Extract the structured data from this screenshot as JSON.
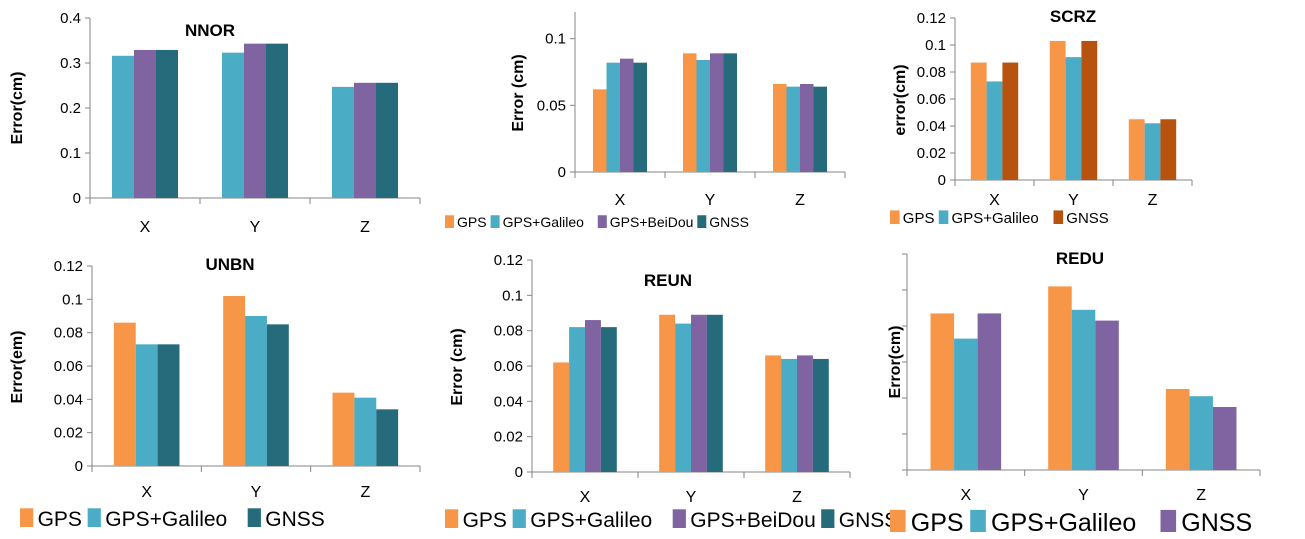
{
  "colors": {
    "GPS": "#F79646",
    "GPS+Galileo": "#4BACC6",
    "GPS+BeiDou": "#8064A2",
    "GNSS_teal": "#256B7B",
    "GNSS_orange": "#B8520F",
    "GNSS_purple": "#8064A2",
    "axis": "#868686",
    "grid": "#bfbfbf"
  },
  "chart_data": [
    {
      "type": "bar",
      "title": "NNOR",
      "ylabel": "Error(cm)",
      "categories": [
        "X",
        "Y",
        "Z"
      ],
      "ylim": [
        0,
        0.4
      ],
      "yticks": [
        "0",
        "0.1",
        "0.2",
        "0.3",
        "0.4"
      ],
      "series": [
        {
          "name": "GPS+Galileo",
          "color": "#4BACC6",
          "values": [
            0.316,
            0.323,
            0.247
          ]
        },
        {
          "name": "GPS+BeiDou",
          "color": "#8064A2",
          "values": [
            0.329,
            0.343,
            0.256
          ]
        },
        {
          "name": "GNSS",
          "color": "#256B7B",
          "values": [
            0.329,
            0.343,
            0.256
          ]
        }
      ],
      "legend": []
    },
    {
      "type": "bar",
      "title": "",
      "ylabel": "Error (cm)",
      "categories": [
        "X",
        "Y",
        "Z"
      ],
      "ylim": [
        0,
        0.12
      ],
      "yticks": [
        "0",
        "0.05",
        "0.1"
      ],
      "yticks_values": [
        0,
        0.05,
        0.1
      ],
      "series": [
        {
          "name": "GPS",
          "color": "#F79646",
          "values": [
            0.062,
            0.089,
            0.066
          ]
        },
        {
          "name": "GPS+Galileo",
          "color": "#4BACC6",
          "values": [
            0.082,
            0.084,
            0.064
          ]
        },
        {
          "name": "GPS+BeiDou",
          "color": "#8064A2",
          "values": [
            0.085,
            0.089,
            0.066
          ]
        },
        {
          "name": "GNSS",
          "color": "#256B7B",
          "values": [
            0.082,
            0.089,
            0.064
          ]
        }
      ],
      "legend": [
        "GPS",
        "GPS+Galileo",
        "GPS+BeiDou",
        "GNSS"
      ]
    },
    {
      "type": "bar",
      "title": "SCRZ",
      "ylabel": "error(cm)",
      "categories": [
        "X",
        "Y",
        "Z"
      ],
      "ylim": [
        0,
        0.12
      ],
      "yticks": [
        "0",
        "0.02",
        "0.04",
        "0.06",
        "0.08",
        "0.1",
        "0.12"
      ],
      "series": [
        {
          "name": "GPS",
          "color": "#F79646",
          "values": [
            0.087,
            0.103,
            0.045
          ]
        },
        {
          "name": "GPS+Galileo",
          "color": "#4BACC6",
          "values": [
            0.073,
            0.091,
            0.042
          ]
        },
        {
          "name": "GNSS",
          "color": "#B8520F",
          "values": [
            0.087,
            0.103,
            0.045
          ]
        }
      ],
      "legend": [
        "GPS",
        "GPS+Galileo",
        "GNSS"
      ]
    },
    {
      "type": "bar",
      "title": "UNBN",
      "ylabel": "Error(em)",
      "categories": [
        "X",
        "Y",
        "Z"
      ],
      "ylim": [
        0,
        0.12
      ],
      "yticks": [
        "0",
        "0.02",
        "0.04",
        "0.06",
        "0.08",
        "0.1",
        "0.12"
      ],
      "series": [
        {
          "name": "GPS",
          "color": "#F79646",
          "values": [
            0.086,
            0.102,
            0.044
          ]
        },
        {
          "name": "GPS+Galileo",
          "color": "#4BACC6",
          "values": [
            0.073,
            0.09,
            0.041
          ]
        },
        {
          "name": "GNSS",
          "color": "#256B7B",
          "values": [
            0.073,
            0.085,
            0.034
          ]
        }
      ],
      "legend": [
        "GPS",
        "GPS+Galileo",
        "GNSS"
      ]
    },
    {
      "type": "bar",
      "title": "REUN",
      "ylabel": "Error (cm)",
      "categories": [
        "X",
        "Y",
        "Z"
      ],
      "ylim": [
        0,
        0.12
      ],
      "yticks": [
        "0",
        "0.02",
        "0.04",
        "0.06",
        "0.08",
        "0.1",
        "0.12"
      ],
      "series": [
        {
          "name": "GPS",
          "color": "#F79646",
          "values": [
            0.062,
            0.089,
            0.066
          ]
        },
        {
          "name": "GPS+Galileo",
          "color": "#4BACC6",
          "values": [
            0.082,
            0.084,
            0.064
          ]
        },
        {
          "name": "GPS+BeiDou",
          "color": "#8064A2",
          "values": [
            0.086,
            0.089,
            0.066
          ]
        },
        {
          "name": "GNSS",
          "color": "#256B7B",
          "values": [
            0.082,
            0.089,
            0.064
          ]
        }
      ],
      "legend": [
        "GPS",
        "GPS+Galileo",
        "GPS+BeiDou",
        "GNSS"
      ]
    },
    {
      "type": "bar",
      "title": "REDU",
      "ylabel": "Error(cm)",
      "categories": [
        "X",
        "Y",
        "Z"
      ],
      "ylim": [
        0,
        0.12
      ],
      "yticks": [],
      "series": [
        {
          "name": "GPS",
          "color": "#F79646",
          "values": [
            0.087,
            0.102,
            0.045
          ]
        },
        {
          "name": "GPS+Galileo",
          "color": "#4BACC6",
          "values": [
            0.073,
            0.089,
            0.041
          ]
        },
        {
          "name": "GNSS",
          "color": "#8064A2",
          "values": [
            0.087,
            0.083,
            0.035
          ]
        }
      ],
      "legend": [
        "GPS",
        "GPS+Galileo",
        "GNSS"
      ]
    }
  ]
}
